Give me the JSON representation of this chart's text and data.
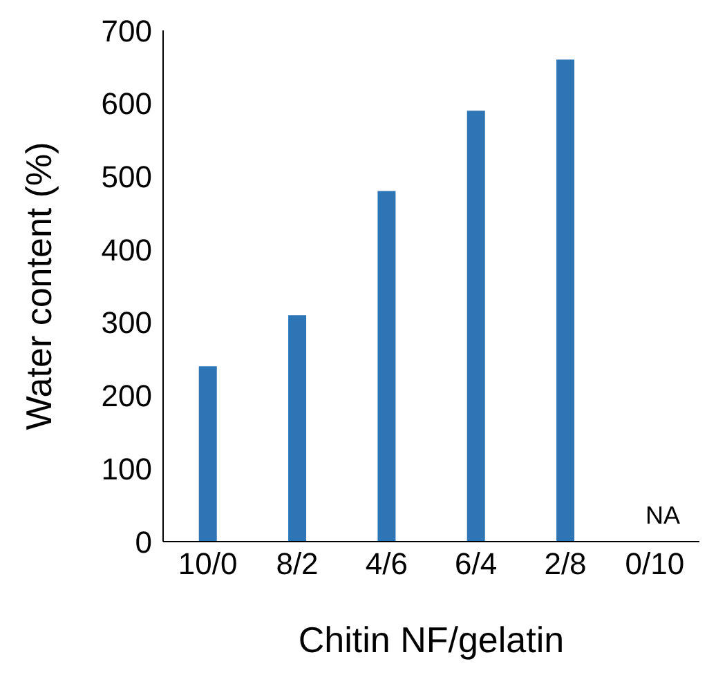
{
  "chart_data": {
    "type": "bar",
    "xlabel": "Chitin NF/gelatin",
    "ylabel": "Water content (%)",
    "categories": [
      "10/0",
      "8/2",
      "4/6",
      "6/4",
      "2/8",
      "0/10"
    ],
    "values": [
      240,
      310,
      480,
      590,
      660,
      null
    ],
    "color": "#2e75b6",
    "ylim": [
      0,
      700
    ],
    "yticks": [
      0,
      100,
      200,
      300,
      400,
      500,
      600,
      700
    ],
    "annotations": [
      "NA"
    ],
    "grid": false,
    "legend": false
  }
}
